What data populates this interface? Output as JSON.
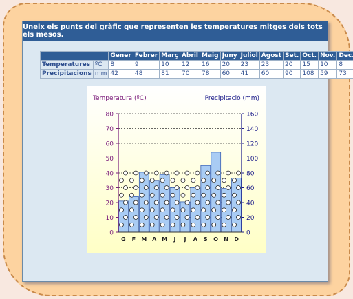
{
  "header": {
    "title": "Uneix els punts del gràfic que representen les temperatures mitges dels tots els mesos."
  },
  "table": {
    "months": [
      "Gener",
      "Febrer",
      "Març",
      "Abril",
      "Maig",
      "Juny",
      "Juliol",
      "Agost",
      "Set.",
      "Oct.",
      "Nov.",
      "Dec."
    ],
    "rows": [
      {
        "label": "Temperatures",
        "unit": "ºC",
        "values": [
          "8",
          "9",
          "10",
          "12",
          "16",
          "20",
          "23",
          "23",
          "20",
          "15",
          "10",
          "8"
        ]
      },
      {
        "label": "Precipitacions",
        "unit": "mm",
        "values": [
          "42",
          "48",
          "81",
          "70",
          "78",
          "60",
          "41",
          "60",
          "90",
          "108",
          "59",
          "73"
        ]
      }
    ]
  },
  "chart_data": {
    "type": "bar",
    "left_axis_label": "Temperatura (ºC)",
    "right_axis_label": "Precipitació (mm)",
    "categories": [
      "G",
      "F",
      "M",
      "A",
      "M",
      "J",
      "J",
      "A",
      "S",
      "O",
      "N",
      "D"
    ],
    "values": [
      42,
      48,
      81,
      70,
      78,
      60,
      41,
      60,
      90,
      108,
      59,
      73
    ],
    "left_ylim": [
      0,
      80
    ],
    "right_ylim": [
      0,
      160
    ],
    "left_ticks": [
      "0",
      "10",
      "20",
      "30",
      "40",
      "50",
      "60",
      "70",
      "80"
    ],
    "right_ticks": [
      "0",
      "20",
      "40",
      "60",
      "80",
      "100",
      "120",
      "140",
      "160"
    ],
    "dot_temps": [
      5,
      10,
      15,
      20,
      25,
      30,
      35,
      40
    ],
    "grid": true,
    "colors": {
      "bar": "#a9ccf4",
      "bar_stroke": "#3a5fb0",
      "bg": "#ffffc6",
      "axis_left": "#7a1a7a",
      "axis_right": "#1a1a8a",
      "dot": "#ffffff"
    }
  }
}
